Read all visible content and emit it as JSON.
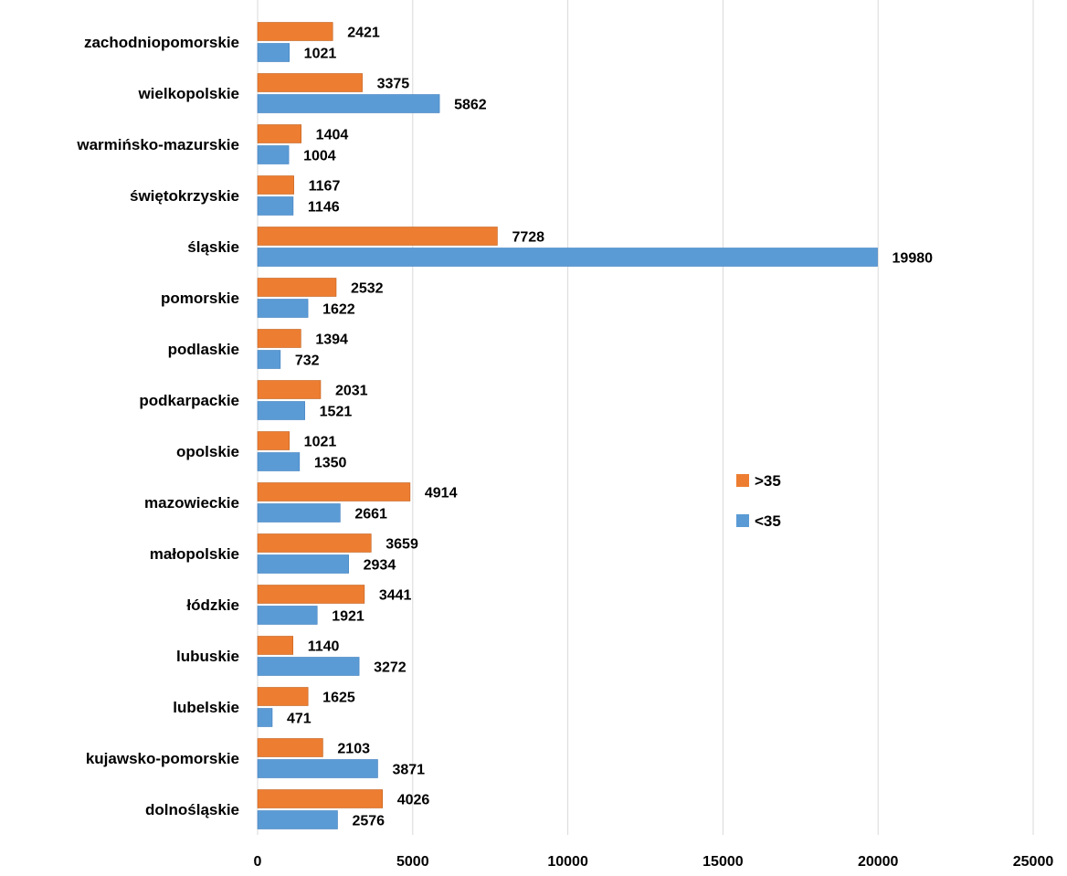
{
  "chart_data": {
    "type": "bar",
    "orientation": "horizontal",
    "categories": [
      "zachodniopomorskie",
      "wielkopolskie",
      "warmińsko-mazurskie",
      "świętokrzyskie",
      "śląskie",
      "pomorskie",
      "podlaskie",
      "podkarpackie",
      "opolskie",
      "mazowieckie",
      "małopolskie",
      "łódzkie",
      "lubuskie",
      "lubelskie",
      "kujawsko-pomorskie",
      "dolnośląskie"
    ],
    "series": [
      {
        "name": ">35",
        "color": "#ED7D31",
        "values": [
          2421,
          3375,
          1404,
          1167,
          7728,
          2532,
          1394,
          2031,
          1021,
          4914,
          3659,
          3441,
          1140,
          1625,
          2103,
          4026
        ]
      },
      {
        "name": "<35",
        "color": "#5B9BD5",
        "values": [
          1021,
          5862,
          1004,
          1146,
          19980,
          1622,
          732,
          1521,
          1350,
          2661,
          2934,
          1921,
          3272,
          471,
          3871,
          2576
        ]
      }
    ],
    "xlim": [
      0,
      25000
    ],
    "x_ticks": [
      "0",
      "5000",
      "10000",
      "15000",
      "20000",
      "25000"
    ],
    "grid": true,
    "legend_position": "right"
  }
}
